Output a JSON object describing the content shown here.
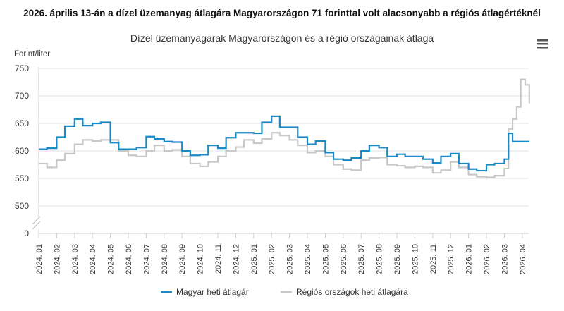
{
  "chart_data": {
    "type": "line",
    "step": true,
    "title": "2026. április 13-án a dízel üzemanyag átlagára Magyarországon 71 forinttal volt alacsonyabb a régiós átlagértéknél",
    "subtitle": "Dízel üzemanyagárak Magyarországon és a régió országainak átlaga",
    "ylabel": "Forint/liter",
    "ylim": [
      0,
      750
    ],
    "y_axis_break": [
      0,
      500
    ],
    "yticks": [
      0,
      500,
      550,
      600,
      650,
      700,
      750
    ],
    "grid": true,
    "legend_placement": "bottom",
    "xtick_labels": [
      "2024. 01.",
      "2024. 02.",
      "2024. 03.",
      "2024. 04.",
      "2024. 05.",
      "2024. 06.",
      "2024. 07.",
      "2024. 08.",
      "2024. 09.",
      "2024. 10.",
      "2024. 11.",
      "2024. 12.",
      "2025. 01.",
      "2025. 02.",
      "2025. 03.",
      "2025. 04.",
      "2025. 05.",
      "2025. 06.",
      "2025. 07.",
      "2025. 08.",
      "2025. 09.",
      "2025. 10.",
      "2025. 11.",
      "2025. 12.",
      "2026. 01.",
      "2026. 02.",
      "2026. 03.",
      "2026. 04."
    ],
    "x": [
      "2024-01-01",
      "2024-01-15",
      "2024-02-01",
      "2024-02-15",
      "2024-03-01",
      "2024-03-15",
      "2024-04-01",
      "2024-04-15",
      "2024-05-01",
      "2024-05-15",
      "2024-06-01",
      "2024-06-15",
      "2024-07-01",
      "2024-07-15",
      "2024-08-01",
      "2024-08-15",
      "2024-09-01",
      "2024-09-15",
      "2024-10-01",
      "2024-10-15",
      "2024-11-01",
      "2024-11-15",
      "2024-12-01",
      "2024-12-15",
      "2025-01-01",
      "2025-01-15",
      "2025-02-01",
      "2025-02-15",
      "2025-03-01",
      "2025-03-15",
      "2025-04-01",
      "2025-04-15",
      "2025-05-01",
      "2025-05-15",
      "2025-06-01",
      "2025-06-15",
      "2025-07-01",
      "2025-07-15",
      "2025-08-01",
      "2025-08-15",
      "2025-09-01",
      "2025-09-15",
      "2025-10-01",
      "2025-10-15",
      "2025-11-01",
      "2025-11-15",
      "2025-12-01",
      "2025-12-15",
      "2026-01-01",
      "2026-01-15",
      "2026-02-01",
      "2026-02-15",
      "2026-03-01",
      "2026-03-08",
      "2026-03-15",
      "2026-03-22",
      "2026-03-29",
      "2026-04-06",
      "2026-04-13"
    ],
    "series": [
      {
        "name": "Magyar heti átlagár",
        "color": "#1a8ac6",
        "values": [
          603,
          605,
          625,
          645,
          658,
          646,
          650,
          652,
          615,
          603,
          603,
          606,
          626,
          622,
          617,
          616,
          600,
          592,
          593,
          610,
          605,
          624,
          633,
          633,
          632,
          652,
          663,
          643,
          643,
          625,
          612,
          618,
          597,
          585,
          583,
          587,
          600,
          610,
          606,
          590,
          594,
          590,
          590,
          585,
          578,
          590,
          595,
          577,
          567,
          564,
          575,
          577,
          585,
          632,
          617,
          617,
          617,
          617,
          617
        ]
      },
      {
        "name": "Régiós országok heti átlagára",
        "color": "#c8c8c8",
        "values": [
          577,
          570,
          583,
          595,
          612,
          620,
          618,
          620,
          620,
          600,
          592,
          590,
          600,
          610,
          600,
          602,
          590,
          577,
          572,
          580,
          590,
          600,
          607,
          620,
          614,
          622,
          633,
          628,
          620,
          610,
          597,
          600,
          590,
          575,
          567,
          565,
          583,
          587,
          588,
          575,
          573,
          570,
          572,
          570,
          560,
          565,
          580,
          570,
          557,
          553,
          552,
          555,
          568,
          640,
          658,
          680,
          730,
          720,
          688
        ]
      }
    ]
  },
  "menu_icon": "hamburger-menu-icon"
}
